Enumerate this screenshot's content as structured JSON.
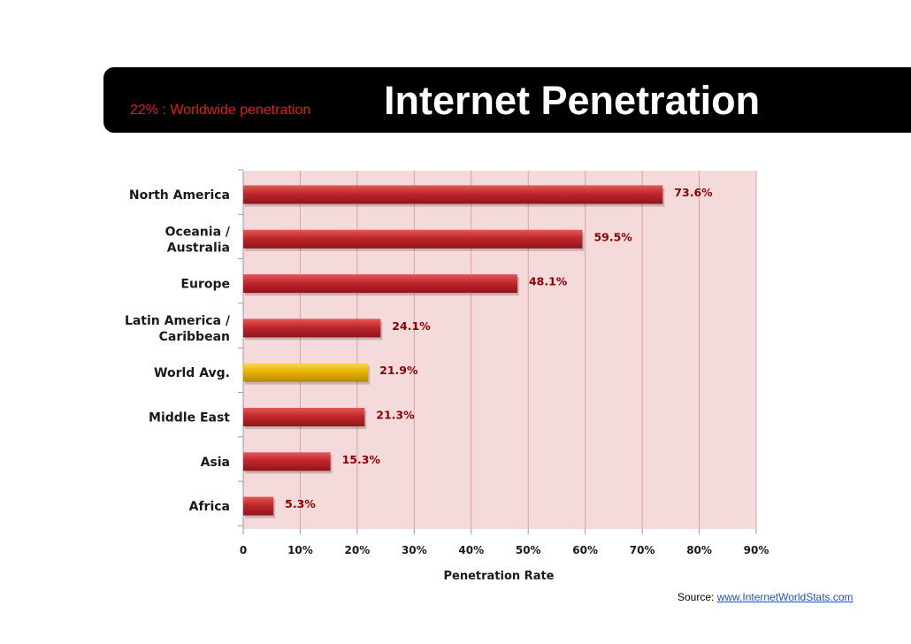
{
  "header": {
    "subtitle": "22% : Worldwide penetration",
    "title": "Internet Penetration"
  },
  "source": {
    "label": "Source",
    "separator": ":",
    "link": "www.InternetWorldStats.com"
  },
  "chart_data": {
    "type": "bar",
    "orientation": "horizontal",
    "title": "Internet Penetration",
    "xlabel": "Penetration Rate",
    "ylabel": "",
    "xlim": [
      0,
      90
    ],
    "x_ticks": [
      "0",
      "10%",
      "20%",
      "30%",
      "40%",
      "50%",
      "60%",
      "70%",
      "80%",
      "90%"
    ],
    "grid": true,
    "categories": [
      [
        "North America"
      ],
      [
        "Oceania  /",
        "Australia"
      ],
      [
        "Europe"
      ],
      [
        "Latin America /",
        "Caribbean"
      ],
      [
        "World Avg."
      ],
      [
        "Middle East"
      ],
      [
        "Asia"
      ],
      [
        "Africa"
      ]
    ],
    "values": [
      73.6,
      59.5,
      48.1,
      24.1,
      21.9,
      21.3,
      15.3,
      5.3
    ],
    "value_labels": [
      "73.6%",
      "59.5%",
      "48.1%",
      "24.1%",
      "21.9%",
      "21.3%",
      "15.3%",
      "5.3%"
    ],
    "highlight_index": 4,
    "colors": {
      "bar": "#c0272d",
      "bar_light": "#e25a55",
      "bar_dark": "#8f1518",
      "highlight": "#e8b400",
      "highlight_light": "#f8d84a",
      "highlight_dark": "#b88a00",
      "plot_bg": "#f4dada",
      "grid": "#d8a4a4",
      "value_label": "#8b0000",
      "text": "#1a1a1a"
    }
  }
}
